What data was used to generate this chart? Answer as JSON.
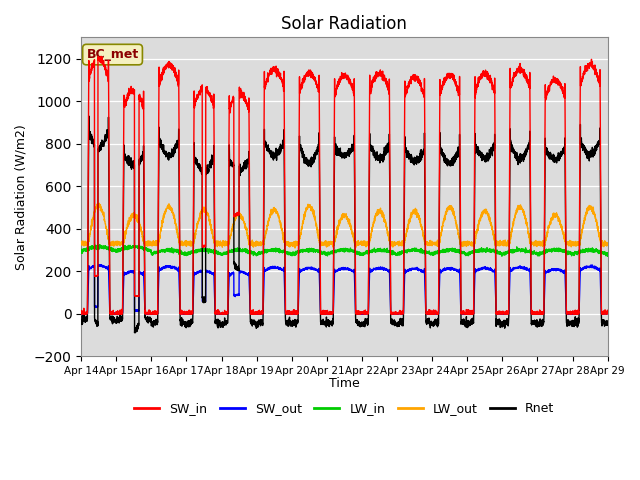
{
  "title": "Solar Radiation",
  "ylabel": "Solar Radiation (W/m2)",
  "xlabel": "Time",
  "annotation": "BC_met",
  "ylim": [
    -200,
    1300
  ],
  "yticks": [
    -200,
    0,
    200,
    400,
    600,
    800,
    1000,
    1200
  ],
  "n_days": 15,
  "start_day": 14,
  "points_per_day": 288,
  "colors": {
    "SW_in": "#ff0000",
    "SW_out": "#0000ff",
    "LW_in": "#00cc00",
    "LW_out": "#ffa500",
    "Rnet": "#000000"
  },
  "legend_labels": [
    "SW_in",
    "SW_out",
    "LW_in",
    "LW_out",
    "Rnet"
  ],
  "plot_bg": "#dcdcdc"
}
